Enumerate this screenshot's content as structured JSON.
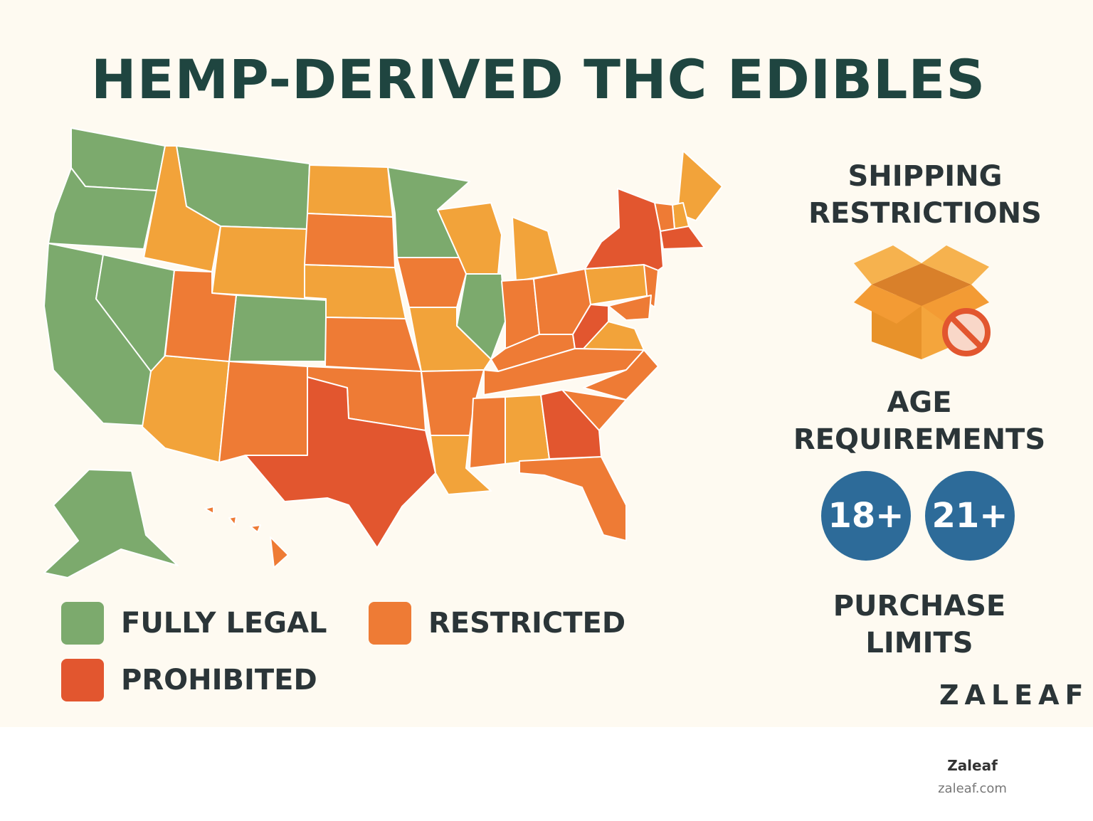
{
  "title": "HEMP-DERIVED THC EDIBLES",
  "colors": {
    "legal": "#7caa6d",
    "restricted": "#ee7b35",
    "prohibited": "#e2562f",
    "light_restricted": "#f2a33a",
    "badge": "#2d6b99",
    "box": "#f4a53c"
  },
  "legend": {
    "legal_label": "FULLY LEGAL",
    "restricted_label": "RESTRICTED",
    "prohibited_label": "PROHIBITED"
  },
  "side": {
    "shipping_line1": "SHIPPING",
    "shipping_line2": "RESTRICTIONS",
    "shipping_icon": "box-no-icon",
    "age_line1": "AGE",
    "age_line2": "REQUIREMENTS",
    "age_badges": [
      "18+",
      "21+"
    ],
    "purchase_line1": "PURCHASE",
    "purchase_line2": "LIMITS"
  },
  "brand_mark": "ZALEAF",
  "footer": {
    "name": "Zaleaf",
    "url": "zaleaf.com"
  }
}
